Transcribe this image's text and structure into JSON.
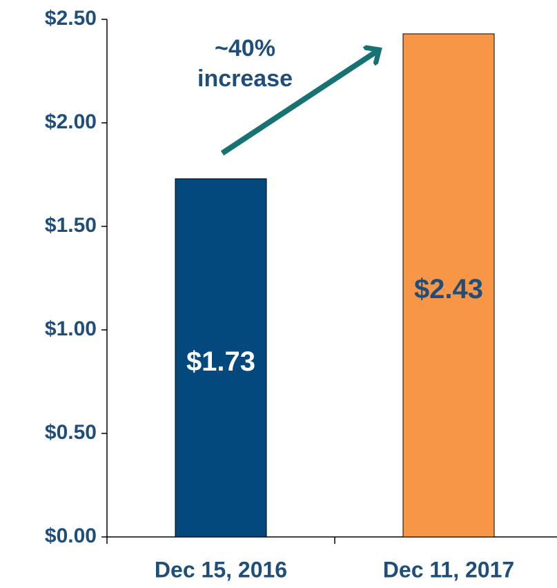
{
  "chart_data": {
    "type": "bar",
    "categories": [
      "Dec 15, 2016",
      "Dec 11, 2017"
    ],
    "values": [
      1.73,
      2.43
    ],
    "value_labels": [
      "$1.73",
      "$2.43"
    ],
    "colors": [
      "#03497e",
      "#f79646"
    ],
    "ylim": [
      0,
      2.5
    ],
    "yticks": [
      {
        "value": 0,
        "label": "$0.00"
      },
      {
        "value": 0.5,
        "label": "$0.50"
      },
      {
        "value": 1,
        "label": "$1.00"
      },
      {
        "value": 1.5,
        "label": "$1.50"
      },
      {
        "value": 2,
        "label": "$2.00"
      },
      {
        "value": 2.5,
        "label": "$2.50"
      }
    ],
    "grid": false,
    "annotation": "~40% increase"
  }
}
